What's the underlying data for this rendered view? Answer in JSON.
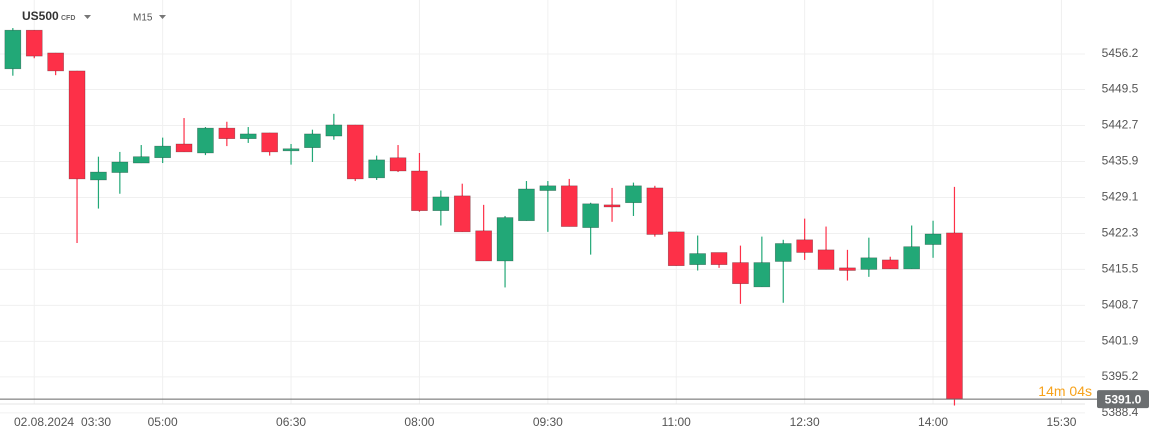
{
  "header": {
    "symbol": "US500",
    "instrument": "CFD",
    "timeframe": "M15"
  },
  "chart_data": {
    "type": "candlestick",
    "date_label": "02.08.2024",
    "open": [
      5453.4,
      5460.7,
      5456.4,
      5453.0,
      5432.4,
      5433.8,
      5435.6,
      5436.6,
      5439.2,
      5437.5,
      5442.2,
      5440.2,
      5441.3,
      5437.9,
      5438.5,
      5440.7,
      5442.8,
      5432.8,
      5436.6,
      5434.1,
      5426.6,
      5429.4,
      5422.8,
      5417.1,
      5424.7,
      5430.4,
      5431.3,
      5423.4,
      5427.7,
      5428.1,
      5430.9,
      5422.6,
      5416.4,
      5418.7,
      5416.8,
      5412.2,
      5417.0,
      5421.1,
      5419.2,
      5415.8,
      5415.5,
      5417.3,
      5415.6,
      5420.2,
      5422.4
    ],
    "high": [
      5461.1,
      5460.7,
      5456.4,
      5453.0,
      5436.8,
      5437.7,
      5439.0,
      5440.4,
      5444.1,
      5442.4,
      5443.4,
      5442.4,
      5441.3,
      5439.2,
      5441.9,
      5444.9,
      5442.8,
      5437.0,
      5439.0,
      5437.5,
      5430.4,
      5431.7,
      5427.7,
      5425.6,
      5432.2,
      5432.2,
      5432.6,
      5428.1,
      5430.9,
      5431.9,
      5431.3,
      5422.6,
      5421.9,
      5418.7,
      5420.0,
      5421.7,
      5421.1,
      5425.1,
      5423.6,
      5419.2,
      5421.5,
      5417.9,
      5423.8,
      5424.7,
      5431.1
    ],
    "low": [
      5452.1,
      5455.4,
      5452.2,
      5420.5,
      5427.0,
      5429.8,
      5435.6,
      5435.6,
      5437.7,
      5437.1,
      5438.8,
      5439.4,
      5437.0,
      5435.3,
      5435.8,
      5440.0,
      5432.2,
      5432.4,
      5433.9,
      5426.4,
      5423.8,
      5422.6,
      5417.1,
      5412.1,
      5424.7,
      5422.6,
      5423.6,
      5418.3,
      5424.5,
      5425.6,
      5421.7,
      5416.2,
      5415.3,
      5415.8,
      5409.0,
      5412.2,
      5409.2,
      5417.3,
      5415.5,
      5413.4,
      5414.1,
      5415.6,
      5415.6,
      5417.7,
      5389.8
    ],
    "close": [
      5460.7,
      5455.8,
      5453.0,
      5432.6,
      5433.9,
      5435.8,
      5436.8,
      5438.8,
      5437.7,
      5442.2,
      5440.2,
      5441.1,
      5437.7,
      5438.3,
      5441.1,
      5442.8,
      5432.6,
      5436.2,
      5434.1,
      5426.6,
      5429.2,
      5422.6,
      5417.1,
      5425.3,
      5430.7,
      5431.3,
      5423.6,
      5427.9,
      5427.3,
      5431.3,
      5422.1,
      5416.2,
      5418.5,
      5416.4,
      5412.8,
      5416.8,
      5420.4,
      5418.7,
      5415.5,
      5415.3,
      5417.7,
      5415.6,
      5419.8,
      5422.2,
      5391.0
    ],
    "up_color": "#22a877",
    "down_color": "#fd3048",
    "ylim": [
      5388.0,
      5466.4
    ],
    "yticks": [
      5456.2,
      5449.5,
      5442.7,
      5435.9,
      5429.1,
      5422.3,
      5415.5,
      5408.7,
      5401.9,
      5395.2,
      5388.4
    ],
    "xlim": [
      -0.6,
      50.1
    ],
    "xticks": [
      {
        "value": 1,
        "label": "03:30"
      },
      {
        "value": 7,
        "label": "05:00"
      },
      {
        "value": 13,
        "label": "06:30"
      },
      {
        "value": 19,
        "label": "08:00"
      },
      {
        "value": 25,
        "label": "09:30"
      },
      {
        "value": 31,
        "label": "11:00"
      },
      {
        "value": 37,
        "label": "12:30"
      },
      {
        "value": 43,
        "label": "14:00"
      },
      {
        "value": 49,
        "label": "15:30"
      }
    ],
    "grid": true,
    "last_price": {
      "value": 5391.0,
      "label": "5391.0"
    },
    "countdown": "14m 04s"
  }
}
